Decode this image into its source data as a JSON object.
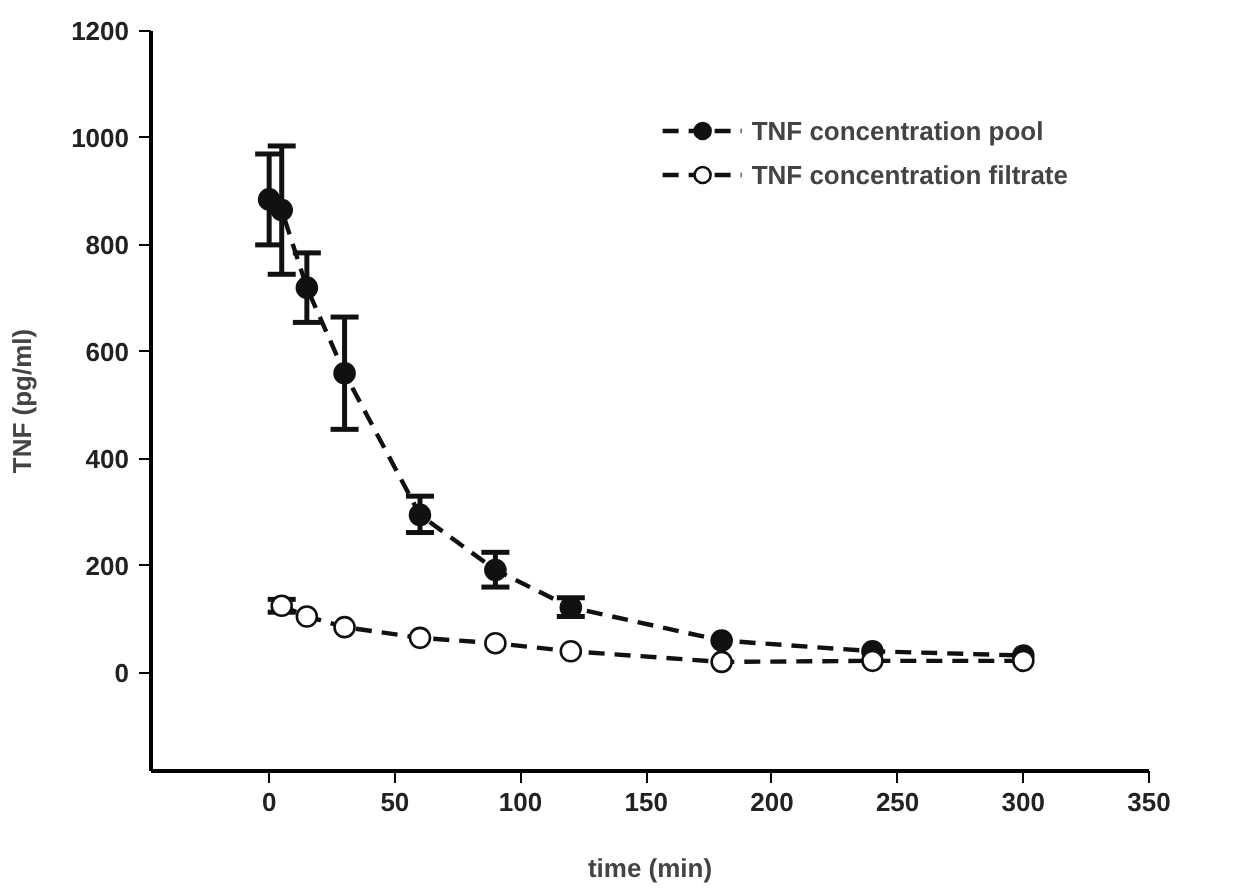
{
  "chart_data": {
    "type": "line",
    "xlabel": "time (min)",
    "ylabel": "TNF (pg/ml)",
    "xlim": [
      -47,
      350
    ],
    "xticks": [
      0,
      50,
      100,
      150,
      200,
      250,
      300,
      350
    ],
    "ylim": [
      -184,
      1200
    ],
    "yticks": [
      0,
      200,
      400,
      600,
      800,
      1000,
      1200
    ],
    "marker": "circle",
    "line_style": "dashed",
    "grid": false,
    "legend": "top right",
    "series": [
      {
        "name": "TNF concentration pool",
        "color": "#111111",
        "x": [
          0,
          5,
          15,
          30,
          60,
          90,
          120,
          180,
          240,
          300
        ],
        "values": [
          885,
          865,
          720,
          560,
          295,
          192,
          122,
          60,
          40,
          32
        ],
        "errors": [
          [
            800,
            970
          ],
          [
            745,
            985
          ],
          [
            655,
            785
          ],
          [
            455,
            665
          ],
          [
            262,
            330
          ],
          [
            160,
            225
          ],
          [
            105,
            140
          ],
          null,
          null,
          null
        ]
      },
      {
        "name": "TNF concentration filtrate",
        "color": "#ffffff",
        "x": [
          5,
          15,
          30,
          60,
          90,
          120,
          180,
          240,
          300
        ],
        "values": [
          125,
          105,
          85,
          65,
          55,
          40,
          20,
          22,
          22
        ],
        "errors": [
          [
            113,
            137
          ],
          null,
          null,
          null,
          null,
          null,
          null,
          null,
          null
        ]
      }
    ]
  }
}
